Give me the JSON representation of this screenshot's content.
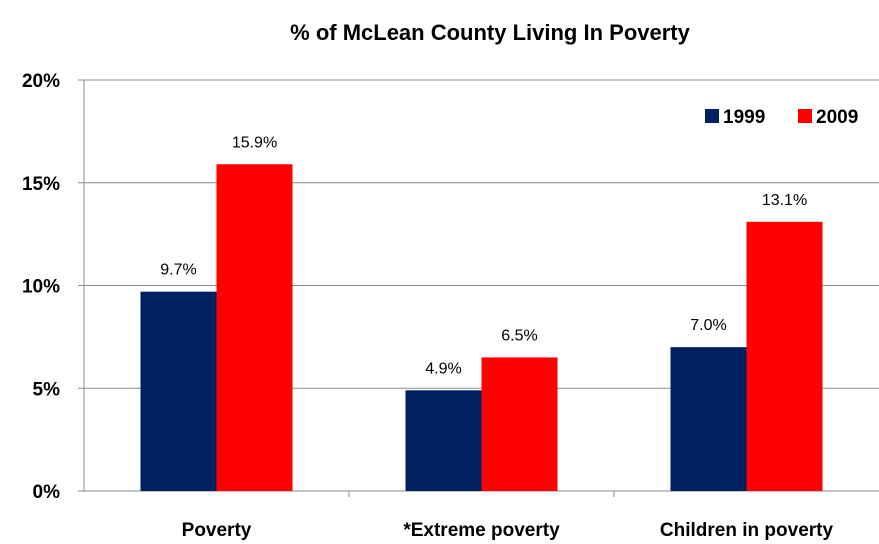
{
  "chart_data": {
    "type": "bar",
    "title": "% of McLean County Living In Poverty",
    "xlabel": "",
    "ylabel": "",
    "categories": [
      "Poverty",
      "*Extreme poverty",
      "Children in poverty"
    ],
    "series": [
      {
        "name": "1999",
        "color": "#002060",
        "values": [
          9.7,
          4.9,
          7.0
        ],
        "labels": [
          "9.7%",
          "4.9%",
          "7.0%"
        ]
      },
      {
        "name": "2009",
        "color": "#ff0000",
        "values": [
          15.9,
          6.5,
          13.1
        ],
        "labels": [
          "15.9%",
          "6.5%",
          "13.1%"
        ]
      }
    ],
    "ylim": [
      0,
      20
    ],
    "yticks": [
      0,
      5,
      10,
      15,
      20
    ],
    "ytick_labels": [
      "0%",
      "5%",
      "10%",
      "15%",
      "20%"
    ],
    "grid": true,
    "legend_position": "top-right"
  }
}
